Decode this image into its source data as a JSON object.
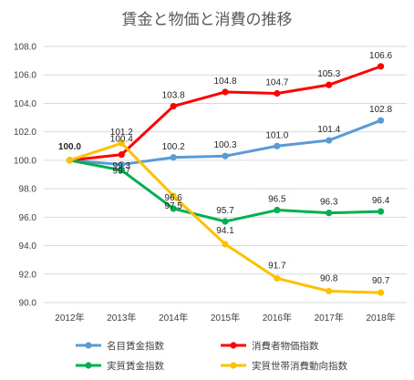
{
  "chart_data": {
    "type": "line",
    "title": "賃金と物価と消費の推移",
    "categories": [
      "2012年",
      "2013年",
      "2014年",
      "2015年",
      "2016年",
      "2017年",
      "2018年"
    ],
    "ylim": [
      90.0,
      108.0
    ],
    "yticks": [
      "90.0",
      "92.0",
      "94.0",
      "96.0",
      "98.0",
      "100.0",
      "102.0",
      "104.0",
      "106.0",
      "108.0"
    ],
    "grid": true,
    "legend_position": "bottom",
    "series": [
      {
        "name": "名目賃金指数",
        "color": "#5b9bd5",
        "values": [
          100.0,
          99.7,
          100.2,
          100.3,
          101.0,
          101.4,
          102.8
        ],
        "labels": [
          "",
          "99.7",
          "100.2",
          "100.3",
          "101.0",
          "101.4",
          "102.8"
        ]
      },
      {
        "name": "消費者物価指数",
        "color": "#ff0000",
        "values": [
          100.0,
          100.4,
          103.8,
          104.8,
          104.7,
          105.3,
          106.6
        ],
        "labels": [
          "100.0",
          "100.4",
          "103.8",
          "104.8",
          "104.7",
          "105.3",
          "106.6"
        ]
      },
      {
        "name": "実質賃金指数",
        "color": "#00b050",
        "values": [
          100.0,
          99.3,
          96.6,
          95.7,
          96.5,
          96.3,
          96.4
        ],
        "labels": [
          "",
          "99.3",
          "96.6",
          "95.7",
          "96.5",
          "96.3",
          "96.4"
        ]
      },
      {
        "name": "実質世帯消費動向指数",
        "color": "#ffc000",
        "values": [
          100.0,
          101.2,
          97.5,
          94.1,
          91.7,
          90.8,
          90.7
        ],
        "labels": [
          "",
          "101.2",
          "97.5",
          "94.1",
          "91.7",
          "90.8",
          "90.7"
        ]
      }
    ]
  }
}
